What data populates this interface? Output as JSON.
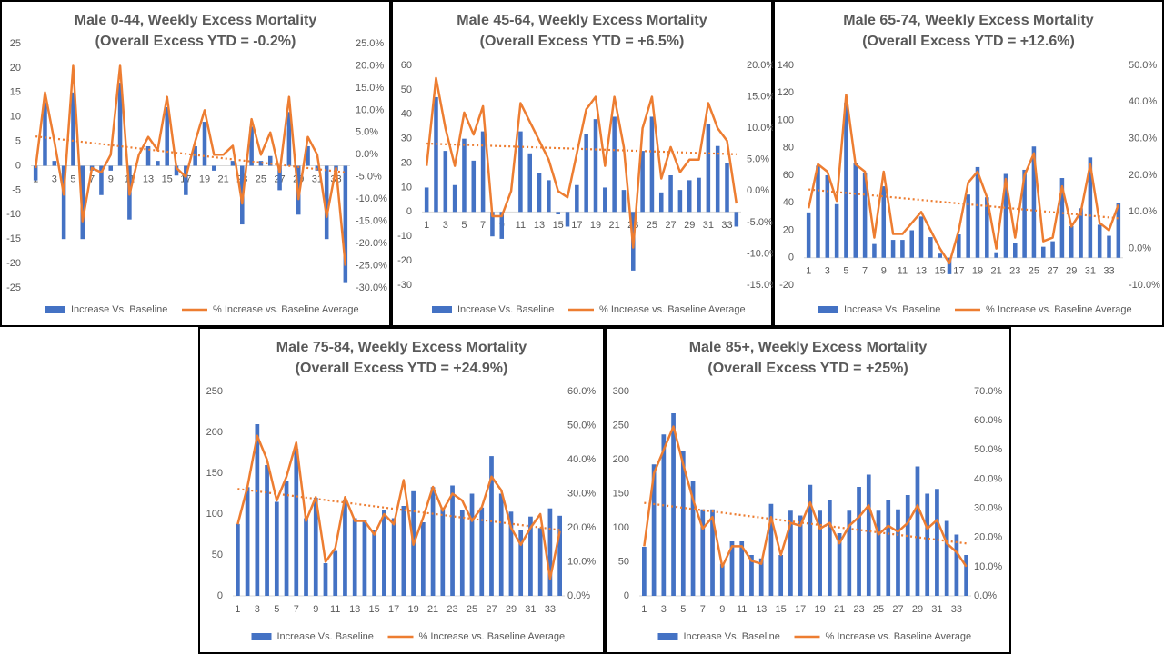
{
  "chart_data": [
    {
      "type": "bar_line",
      "title": "Male 0-44, Weekly Excess Mortality",
      "subtitle": "(Overall Excess YTD = -0.2%)",
      "categories": [
        "1",
        null,
        "3",
        null,
        "5",
        null,
        "7",
        null,
        "9",
        null,
        "11",
        null,
        "13",
        null,
        "15",
        null,
        "17",
        null,
        "19",
        null,
        "21",
        null,
        "23",
        null,
        "25",
        null,
        "27",
        null,
        "29",
        null,
        "31",
        null,
        "33",
        null
      ],
      "series": [
        {
          "name": "Increase Vs. Baseline",
          "color": "#4472c4",
          "values": [
            -3,
            13,
            1,
            -15,
            15,
            -15,
            -1,
            -6,
            -1,
            17,
            -11,
            0,
            4,
            1,
            12,
            -2,
            -6,
            4,
            9,
            -1,
            0,
            1,
            -12,
            8,
            1,
            2,
            -5,
            11,
            -10,
            4,
            -1,
            -15,
            -1,
            -24
          ]
        },
        {
          "name": "% Increase vs. Baseline Average",
          "color": "#ed7d31",
          "axis": "y2",
          "values": [
            -3,
            14,
            3,
            -9,
            20,
            -15,
            -3,
            -4,
            0,
            20,
            -9,
            0,
            4,
            1,
            13,
            -3,
            -5,
            3,
            10,
            0,
            0,
            2,
            -11,
            8,
            0,
            5,
            -4,
            13,
            -10,
            4,
            0,
            -14,
            -3,
            -25
          ]
        }
      ],
      "trendline": true,
      "ylim": [
        -25,
        25
      ],
      "yticks": [
        25,
        20,
        15,
        10,
        5,
        0,
        -5,
        -10,
        -15,
        -20,
        -25
      ],
      "y2lim": [
        -30,
        25
      ],
      "y2ticks": [
        {
          "value": 25,
          "label": "25.0%"
        },
        {
          "value": 20,
          "label": "20.0%"
        },
        {
          "value": 15,
          "label": "15.0%"
        },
        {
          "value": 10,
          "label": "10.0%"
        },
        {
          "value": 5,
          "label": "5.0%"
        },
        {
          "value": 0,
          "label": "0.0%"
        },
        {
          "value": -5,
          "label": "-5.0%"
        },
        {
          "value": -10,
          "label": "-10.0%"
        },
        {
          "value": -15,
          "label": "-15.0%"
        },
        {
          "value": -20,
          "label": "-20.0%"
        },
        {
          "value": -25,
          "label": "-25.0%"
        },
        {
          "value": -30,
          "label": "-30.0%"
        }
      ]
    },
    {
      "type": "bar_line",
      "title": "Male 45-64, Weekly Excess Mortality",
      "subtitle": "(Overall Excess YTD = +6.5%)",
      "categories": [
        "1",
        null,
        "3",
        null,
        "5",
        null,
        "7",
        null,
        "9",
        null,
        "11",
        null,
        "13",
        null,
        "15",
        null,
        "17",
        null,
        "19",
        null,
        "21",
        null,
        "23",
        null,
        "25",
        null,
        "27",
        null,
        "29",
        null,
        "31",
        null,
        "33",
        null
      ],
      "series": [
        {
          "name": "Increase Vs. Baseline",
          "color": "#4472c4",
          "values": [
            10,
            47,
            25,
            11,
            30,
            21,
            33,
            -10,
            -11,
            0,
            33,
            24,
            16,
            13,
            -1,
            -6,
            11,
            32,
            38,
            10,
            39,
            9,
            -24,
            25,
            39,
            8,
            15,
            9,
            13,
            14,
            36,
            27,
            20,
            -6
          ]
        },
        {
          "name": "% Increase vs. Baseline Average",
          "color": "#ed7d31",
          "axis": "y2",
          "values": [
            4,
            18,
            10,
            4,
            12.5,
            9,
            13.5,
            -4,
            -4,
            0,
            14,
            11,
            8,
            5,
            0,
            -1,
            6,
            13,
            15,
            4,
            15,
            7,
            -9,
            10,
            15,
            2,
            7,
            3,
            5,
            5,
            14,
            10,
            8,
            -2
          ]
        }
      ],
      "trendline": true,
      "ylim": [
        -30,
        60
      ],
      "yticks": [
        60,
        50,
        40,
        30,
        20,
        10,
        0,
        -10,
        -20,
        -30
      ],
      "y2lim": [
        -15,
        20
      ],
      "y2ticks": [
        {
          "value": 20,
          "label": "20.0%"
        },
        {
          "value": 15,
          "label": "15.0%"
        },
        {
          "value": 10,
          "label": "10.0%"
        },
        {
          "value": 5,
          "label": "5.0%"
        },
        {
          "value": 0,
          "label": "0.0%"
        },
        {
          "value": -5,
          "label": "-5.0%"
        },
        {
          "value": -10,
          "label": "-10.0%"
        },
        {
          "value": -15,
          "label": "-15.0%"
        }
      ]
    },
    {
      "type": "bar_line",
      "title": "Male 65-74, Weekly Excess Mortality",
      "subtitle": "(Overall Excess YTD = +12.6%)",
      "categories": [
        "1",
        null,
        "3",
        null,
        "5",
        null,
        "7",
        null,
        "9",
        null,
        "11",
        null,
        "13",
        null,
        "15",
        null,
        "17",
        null,
        "19",
        null,
        "21",
        null,
        "23",
        null,
        "25",
        null,
        "27",
        null,
        "29",
        null,
        "31",
        null,
        "33",
        null
      ],
      "series": [
        {
          "name": "Increase Vs. Baseline",
          "color": "#4472c4",
          "values": [
            33,
            67,
            60,
            39,
            113,
            69,
            62,
            10,
            52,
            13,
            13,
            20,
            30,
            15,
            3,
            -12,
            17,
            46,
            66,
            44,
            4,
            61,
            11,
            64,
            81,
            8,
            12,
            58,
            23,
            36,
            73,
            24,
            16,
            40
          ]
        },
        {
          "name": "% Increase vs. Baseline Average",
          "color": "#ed7d31",
          "axis": "y2",
          "values": [
            11,
            23,
            21,
            13,
            42,
            23,
            21,
            3,
            21,
            4,
            4,
            7,
            10,
            5,
            0,
            -4,
            5,
            18,
            21,
            14,
            0,
            19,
            3,
            20,
            26,
            2,
            3,
            17,
            6,
            10,
            23,
            7,
            5,
            12
          ]
        }
      ],
      "trendline": true,
      "ylim": [
        -20,
        140
      ],
      "yticks": [
        140,
        120,
        100,
        80,
        60,
        40,
        20,
        0,
        -20
      ],
      "y2lim": [
        -10,
        50
      ],
      "y2ticks": [
        {
          "value": 50,
          "label": "50.0%"
        },
        {
          "value": 40,
          "label": "40.0%"
        },
        {
          "value": 30,
          "label": "30.0%"
        },
        {
          "value": 20,
          "label": "20.0%"
        },
        {
          "value": 10,
          "label": "10.0%"
        },
        {
          "value": 0,
          "label": "0.0%"
        },
        {
          "value": -10,
          "label": "-10.0%"
        }
      ]
    },
    {
      "type": "bar_line",
      "title": "Male 75-84, Weekly Excess Mortality",
      "subtitle": "(Overall Excess YTD = +24.9%)",
      "categories": [
        "1",
        null,
        "3",
        null,
        "5",
        null,
        "7",
        null,
        "9",
        null,
        "11",
        null,
        "13",
        null,
        "15",
        null,
        "17",
        null,
        "19",
        null,
        "21",
        null,
        "23",
        null,
        "25",
        null,
        "27",
        null,
        "29",
        null,
        "31",
        null,
        "33",
        null
      ],
      "series": [
        {
          "name": "Increase Vs. Baseline",
          "color": "#4472c4",
          "values": [
            88,
            133,
            210,
            160,
            115,
            140,
            180,
            95,
            120,
            40,
            55,
            117,
            95,
            93,
            80,
            105,
            95,
            110,
            128,
            90,
            133,
            108,
            135,
            105,
            125,
            108,
            171,
            125,
            103,
            80,
            97,
            83,
            107,
            98
          ]
        },
        {
          "name": "% Increase vs. Baseline Average",
          "color": "#ed7d31",
          "axis": "y2",
          "values": [
            21,
            32,
            47,
            40,
            28,
            35,
            45,
            22,
            29,
            10,
            14,
            29,
            22,
            22,
            18,
            24,
            21,
            34,
            15,
            23,
            32,
            25,
            30,
            28,
            22,
            26,
            35,
            31,
            20,
            15,
            20,
            24,
            5,
            19
          ]
        }
      ],
      "trendline": true,
      "ylim": [
        0,
        250
      ],
      "yticks": [
        250,
        200,
        150,
        100,
        50,
        0
      ],
      "y2lim": [
        0,
        60
      ],
      "y2ticks": [
        {
          "value": 60,
          "label": "60.0%"
        },
        {
          "value": 50,
          "label": "50.0%"
        },
        {
          "value": 40,
          "label": "40.0%"
        },
        {
          "value": 30,
          "label": "30.0%"
        },
        {
          "value": 20,
          "label": "20.0%"
        },
        {
          "value": 10,
          "label": "10.0%"
        },
        {
          "value": 0,
          "label": "0.0%"
        }
      ]
    },
    {
      "type": "bar_line",
      "title": "Male 85+, Weekly Excess Mortality",
      "subtitle": "(Overall Excess YTD = +25%)",
      "categories": [
        "1",
        null,
        "3",
        null,
        "5",
        null,
        "7",
        null,
        "9",
        null,
        "11",
        null,
        "13",
        null,
        "15",
        null,
        "17",
        null,
        "19",
        null,
        "21",
        null,
        "23",
        null,
        "25",
        null,
        "27",
        null,
        "29",
        null,
        "31",
        null,
        "33",
        null
      ],
      "series": [
        {
          "name": "Increase Vs. Baseline",
          "color": "#4472c4",
          "values": [
            72,
            193,
            237,
            268,
            213,
            168,
            127,
            127,
            47,
            80,
            80,
            60,
            55,
            135,
            60,
            125,
            118,
            163,
            125,
            140,
            92,
            125,
            160,
            178,
            125,
            140,
            127,
            148,
            190,
            150,
            157,
            110,
            90,
            60
          ]
        },
        {
          "name": "% Increase vs. Baseline Average",
          "color": "#ed7d31",
          "axis": "y2",
          "values": [
            17,
            42,
            50,
            58,
            45,
            33,
            23,
            27,
            10,
            17,
            17,
            12,
            11,
            27,
            14,
            25,
            24,
            32,
            23,
            25,
            18,
            24,
            27,
            31,
            21,
            24,
            22,
            25,
            31,
            23,
            26,
            18,
            15,
            10
          ]
        }
      ],
      "trendline": true,
      "ylim": [
        0,
        300
      ],
      "yticks": [
        300,
        250,
        200,
        150,
        100,
        50,
        0
      ],
      "y2lim": [
        0,
        70
      ],
      "y2ticks": [
        {
          "value": 70,
          "label": "70.0%"
        },
        {
          "value": 60,
          "label": "60.0%"
        },
        {
          "value": 50,
          "label": "50.0%"
        },
        {
          "value": 40,
          "label": "40.0%"
        },
        {
          "value": 30,
          "label": "30.0%"
        },
        {
          "value": 20,
          "label": "20.0%"
        },
        {
          "value": 10,
          "label": "10.0%"
        },
        {
          "value": 0,
          "label": "0.0%"
        }
      ]
    }
  ]
}
